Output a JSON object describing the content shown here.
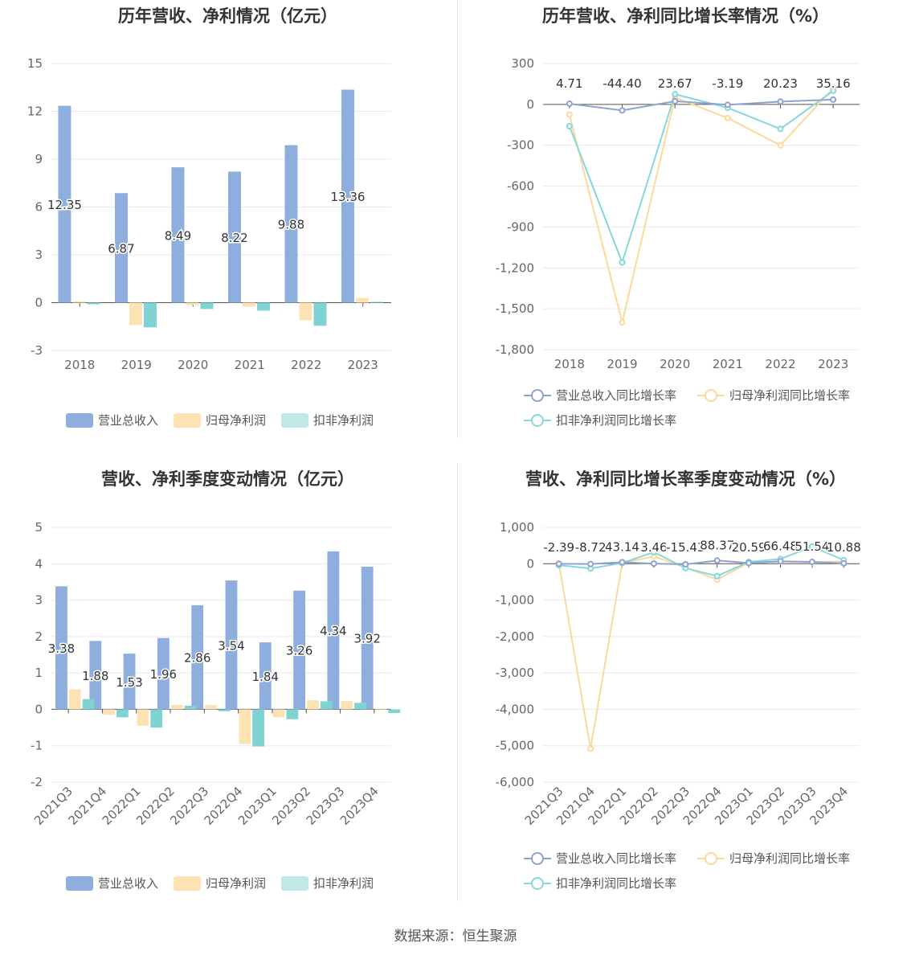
{
  "source": "数据来源：恒生聚源",
  "legend_bar": [
    "营业总收入",
    "归母净利润",
    "扣非净利润"
  ],
  "legend_line": [
    "营业总收入同比增长率",
    "归母净利润同比增长率",
    "扣非净利润同比增长率"
  ],
  "colors": {
    "revenue": "#8eaedd",
    "net_profit": "#fde3b3",
    "deducted": "#7fd3d3",
    "revenue_line": "#8ea2d2",
    "net_profit_line": "#fcd99a",
    "deducted_line": "#86d7da"
  },
  "chart_data": [
    {
      "id": "annual_values",
      "type": "bar",
      "title": "历年营收、净利情况（亿元）",
      "categories": [
        "2018",
        "2019",
        "2020",
        "2021",
        "2022",
        "2023"
      ],
      "ylim": [
        -3,
        15
      ],
      "yticks": [
        -3,
        0,
        3,
        6,
        9,
        12,
        15
      ],
      "series": [
        {
          "name": "营业总收入",
          "values": [
            12.35,
            6.87,
            8.49,
            8.22,
            9.88,
            13.36
          ]
        },
        {
          "name": "归母净利润",
          "values": [
            0.08,
            -1.4,
            -0.15,
            -0.25,
            -1.1,
            0.3
          ]
        },
        {
          "name": "扣非净利润",
          "values": [
            -0.1,
            -1.55,
            -0.4,
            -0.5,
            -1.45,
            0.05
          ]
        }
      ],
      "data_labels": [
        "12.35",
        "6.87",
        "8.49",
        "8.22",
        "9.88",
        "13.36"
      ],
      "legend": "bottom",
      "grid": true
    },
    {
      "id": "annual_growth",
      "type": "line",
      "title": "历年营收、净利同比增长率情况（%）",
      "categories": [
        "2018",
        "2019",
        "2020",
        "2021",
        "2022",
        "2023"
      ],
      "ylim": [
        -1800,
        300
      ],
      "yticks": [
        -1800,
        -1500,
        -1200,
        -900,
        -600,
        -300,
        0,
        300
      ],
      "ytick_labels": [
        "-1,800",
        "-1,500",
        "-1,200",
        "-900",
        "-600",
        "-300",
        "0",
        "300"
      ],
      "series": [
        {
          "name": "营业总收入同比增长率",
          "values": [
            4.71,
            -44.4,
            23.67,
            -3.19,
            20.23,
            35.16
          ]
        },
        {
          "name": "归母净利润同比增长率",
          "values": [
            -75,
            -1600,
            50,
            -100,
            -300,
            120
          ]
        },
        {
          "name": "扣非净利润同比增长率",
          "values": [
            -160,
            -1160,
            75,
            -25,
            -180,
            100
          ]
        }
      ],
      "data_labels": [
        "4.71",
        "-44.40",
        "23.67",
        "-3.19",
        "20.23",
        "35.16"
      ],
      "legend": "bottom",
      "grid": true
    },
    {
      "id": "quarterly_values",
      "type": "bar",
      "title": "营收、净利季度变动情况（亿元）",
      "categories": [
        "2021Q3",
        "2021Q4",
        "2022Q1",
        "2022Q2",
        "2022Q3",
        "2022Q4",
        "2023Q1",
        "2023Q2",
        "2023Q3",
        "2023Q4"
      ],
      "ylim": [
        -2,
        5
      ],
      "yticks": [
        -2,
        -1,
        0,
        1,
        2,
        3,
        4,
        5
      ],
      "series": [
        {
          "name": "营业总收入",
          "values": [
            3.38,
            1.88,
            1.53,
            1.96,
            2.86,
            3.54,
            1.84,
            3.26,
            4.34,
            3.92
          ]
        },
        {
          "name": "归母净利润",
          "values": [
            0.55,
            -0.15,
            -0.45,
            0.12,
            0.12,
            -0.95,
            -0.22,
            0.25,
            0.23,
            0.02
          ]
        },
        {
          "name": "扣非净利润",
          "values": [
            0.28,
            -0.22,
            -0.5,
            0.1,
            -0.05,
            -1.02,
            -0.27,
            0.22,
            0.18,
            -0.1
          ]
        }
      ],
      "data_labels": [
        "3.38",
        "1.88",
        "1.53",
        "1.96",
        "2.86",
        "3.54",
        "1.84",
        "3.26",
        "4.34",
        "3.92"
      ],
      "legend": "bottom",
      "grid": true
    },
    {
      "id": "quarterly_growth",
      "type": "line",
      "title": "营收、净利同比增长率季度变动情况（%）",
      "categories": [
        "2021Q3",
        "2021Q4",
        "2022Q1",
        "2022Q2",
        "2022Q3",
        "2022Q4",
        "2023Q1",
        "2023Q2",
        "2023Q3",
        "2023Q4"
      ],
      "ylim": [
        -6000,
        1000
      ],
      "yticks": [
        -6000,
        -5000,
        -4000,
        -3000,
        -2000,
        -1000,
        0,
        1000
      ],
      "ytick_labels": [
        "-6,000",
        "-5,000",
        "-4,000",
        "-3,000",
        "-2,000",
        "-1,000",
        "0",
        "1,000"
      ],
      "series": [
        {
          "name": "营业总收入同比增长率",
          "values": [
            -2.39,
            -8.72,
            43.14,
            3.46,
            -15.43,
            88.37,
            20.59,
            66.48,
            51.54,
            10.88
          ]
        },
        {
          "name": "归母净利润同比增长率",
          "values": [
            10,
            -5080,
            20,
            200,
            -100,
            -440,
            30,
            60,
            40,
            70
          ]
        },
        {
          "name": "扣非净利润同比增长率",
          "values": [
            -40,
            -130,
            20,
            320,
            -120,
            -340,
            50,
            130,
            470,
            100
          ]
        }
      ],
      "data_labels": [
        "-2.39",
        "-8.72",
        "43.14",
        "3.46",
        "-15.43",
        "88.37",
        "20.59",
        "66.48",
        "51.54",
        "10.88"
      ],
      "legend": "bottom",
      "grid": true
    }
  ]
}
